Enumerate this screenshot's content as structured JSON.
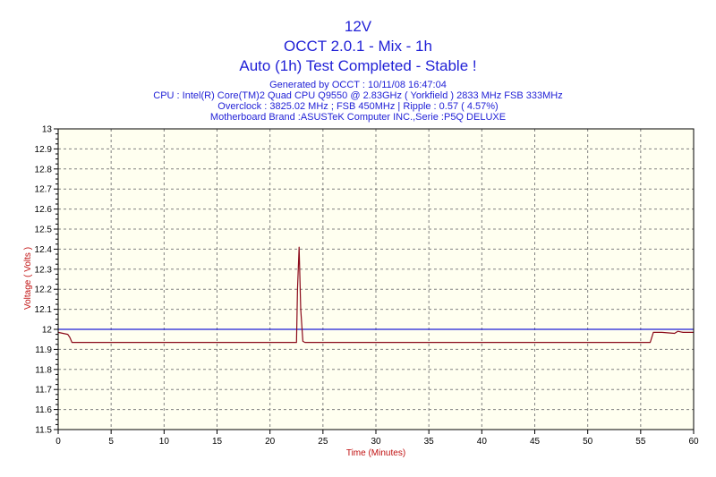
{
  "header": {
    "sensor": "12V",
    "app": "OCCT 2.0.1 - Mix - 1h",
    "status": "Auto (1h) Test Completed - Stable !",
    "generated": "Generated by OCCT : 10/11/08 16:47:04",
    "cpu": "CPU : Intel(R) Core(TM)2 Quad CPU Q9550 @ 2.83GHz ( Yorkfield ) 2833 MHz FSB 333MHz",
    "overclock": "Overclock : 3825.02 MHz ; FSB 450MHz | Ripple : 0.57 ( 4.57%)",
    "motherboard": "Motherboard Brand :ASUSTeK Computer INC.,Serie :P5Q DELUXE"
  },
  "chart_data": {
    "type": "line",
    "xlabel": "Time (Minutes)",
    "ylabel": "Voltage ( Volts )",
    "xlim": [
      0,
      60
    ],
    "ylim": [
      11.5,
      13
    ],
    "xticks": [
      "0",
      "5",
      "10",
      "15",
      "20",
      "25",
      "30",
      "35",
      "40",
      "45",
      "50",
      "55",
      "60"
    ],
    "yticks": [
      "11.5",
      "11.6",
      "11.7",
      "11.8",
      "11.9",
      "12",
      "12.1",
      "12.2",
      "12.3",
      "12.4",
      "12.5",
      "12.6",
      "12.7",
      "12.8",
      "12.9",
      "13"
    ],
    "grid": true,
    "background": "#fffff0",
    "series": [
      {
        "color": "#8b0a1a",
        "x": [
          0,
          0.9,
          1.1,
          1.3,
          22.5,
          22.6,
          22.75,
          22.9,
          23.1,
          23.3,
          55.9,
          56.2,
          57,
          58.2,
          58.5,
          59,
          60
        ],
        "y": [
          11.985,
          11.975,
          11.96,
          11.935,
          11.935,
          12.2,
          12.41,
          12.1,
          11.94,
          11.935,
          11.935,
          11.985,
          11.985,
          11.98,
          11.99,
          11.985,
          11.985
        ]
      },
      {
        "color": "#1f1fd6",
        "x": [
          0,
          60
        ],
        "y": [
          12.0,
          12.0
        ]
      }
    ]
  }
}
